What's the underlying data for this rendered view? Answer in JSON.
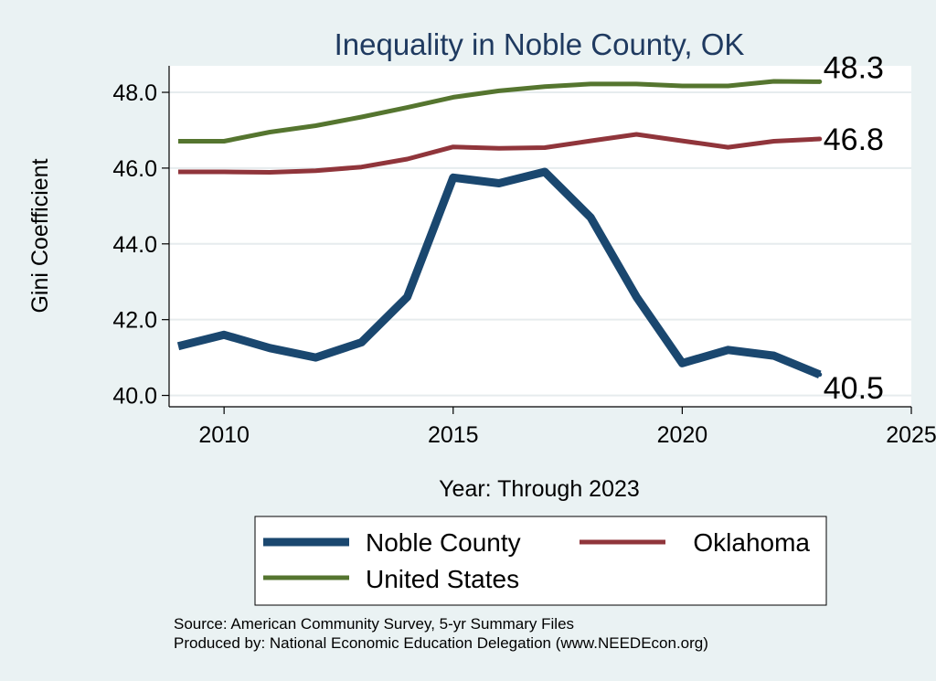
{
  "chart_data": {
    "type": "line",
    "title": "Inequality in Noble County, OK",
    "xlabel": "Year: Through 2023",
    "ylabel": "Gini Coefficient",
    "xlim": [
      2008.8,
      2025
    ],
    "ylim": [
      39.7,
      48.7
    ],
    "x_ticks": [
      2010,
      2015,
      2020,
      2025
    ],
    "y_ticks": [
      40,
      42,
      44,
      46,
      48
    ],
    "x_tick_labels": [
      "2010",
      "2015",
      "2020",
      "2025"
    ],
    "y_tick_labels": [
      "40.0",
      "42.0",
      "44.0",
      "46.0",
      "48.0"
    ],
    "grid": true,
    "legend_position": "bottom",
    "x": [
      2009,
      2010,
      2011,
      2012,
      2013,
      2014,
      2015,
      2016,
      2017,
      2018,
      2019,
      2020,
      2021,
      2022,
      2023
    ],
    "series": [
      {
        "name": "Noble County",
        "color": "#1a476f",
        "values": [
          41.3,
          41.6,
          41.25,
          41.0,
          41.4,
          42.6,
          45.75,
          45.6,
          45.9,
          44.7,
          42.6,
          40.85,
          41.2,
          41.05,
          40.55
        ],
        "end_label": "40.5"
      },
      {
        "name": "Oklahoma",
        "color": "#90353b",
        "values": [
          45.9,
          45.9,
          45.89,
          45.93,
          46.03,
          46.24,
          46.56,
          46.52,
          46.54,
          46.72,
          46.89,
          46.72,
          46.55,
          46.71,
          46.77
        ],
        "end_label": "46.8"
      },
      {
        "name": "United States",
        "color": "#55752f",
        "values": [
          46.71,
          46.71,
          46.95,
          47.12,
          47.35,
          47.6,
          47.87,
          48.04,
          48.15,
          48.22,
          48.22,
          48.17,
          48.17,
          48.29,
          48.28
        ],
        "end_label": "48.3"
      }
    ],
    "legend": [
      {
        "name": "Noble County",
        "color": "#1a476f"
      },
      {
        "name": "Oklahoma",
        "color": "#90353b"
      },
      {
        "name": "United States",
        "color": "#55752f"
      }
    ]
  },
  "source_line1": "Source: American Community Survey, 5-yr Summary Files",
  "source_line2": "Produced by: National Economic Education Delegation (www.NEEDEcon.org)"
}
